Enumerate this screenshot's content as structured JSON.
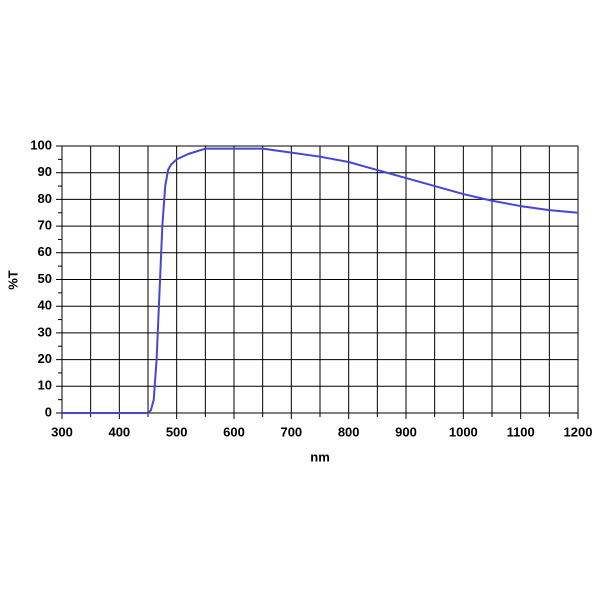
{
  "chart_data": {
    "type": "line",
    "xlabel": "nm",
    "ylabel": "%T",
    "x": [
      300,
      450,
      455,
      460,
      465,
      470,
      475,
      480,
      485,
      490,
      500,
      520,
      550,
      600,
      650,
      700,
      750,
      800,
      850,
      900,
      950,
      1000,
      1050,
      1100,
      1150,
      1200
    ],
    "series": [
      {
        "color": "#4646d2",
        "values": [
          0,
          0,
          1,
          5,
          20,
          45,
          70,
          85,
          91,
          93,
          95,
          97,
          99,
          99,
          99,
          97.5,
          96,
          94,
          91,
          88,
          85,
          82,
          79.5,
          77.5,
          76,
          75
        ]
      }
    ],
    "xlim": [
      300,
      1200
    ],
    "xticks": [
      300,
      400,
      500,
      600,
      700,
      800,
      900,
      1000,
      1100,
      1200
    ],
    "ylim": [
      0,
      100
    ],
    "yticks": [
      0,
      10,
      20,
      30,
      40,
      50,
      60,
      70,
      80,
      90,
      100
    ],
    "grid": true
  }
}
